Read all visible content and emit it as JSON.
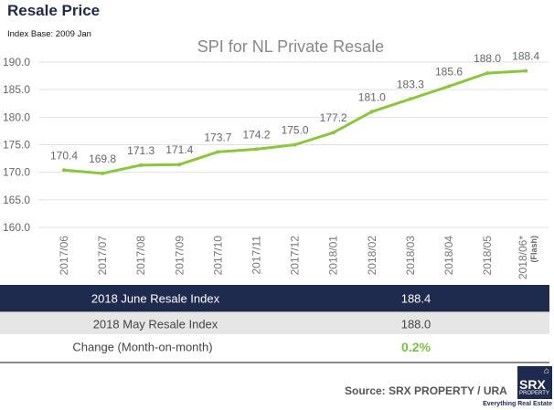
{
  "header": {
    "title": "Resale Price",
    "subtitle": "Index Base: 2009 Jan"
  },
  "chart_data": {
    "type": "line",
    "title": "SPI for NL Private Resale",
    "categories": [
      "2017/06",
      "2017/07",
      "2017/08",
      "2017/09",
      "2017/10",
      "2017/11",
      "2017/12",
      "2018/01",
      "2018/02",
      "2018/03",
      "2018/04",
      "2018/05",
      "2018/06*"
    ],
    "category_note": "(Flash)",
    "values": [
      170.4,
      169.8,
      171.3,
      171.4,
      173.7,
      174.2,
      175.0,
      177.2,
      181.0,
      183.3,
      185.6,
      188.0,
      188.4
    ],
    "data_labels": [
      "170.4",
      "169.8",
      "171.3",
      "171.4",
      "173.7",
      "174.2",
      "175.0",
      "177.2",
      "181.0",
      "183.3",
      "185.6",
      "188.0",
      "188.4"
    ],
    "ylim": [
      160,
      190
    ],
    "yticks": [
      "160.0",
      "165.0",
      "170.0",
      "175.0",
      "180.0",
      "185.0",
      "190.0"
    ],
    "grid": true,
    "line_color": "#8cc63f"
  },
  "table": {
    "rows": [
      {
        "label": "2018 June Resale Index",
        "value": "188.4"
      },
      {
        "label": "2018 May Resale Index",
        "value": "188.0"
      },
      {
        "label": "Change (Month-on-month)",
        "value": "0.2%"
      }
    ]
  },
  "footer": {
    "source": "Source:  SRX PROPERTY / URA",
    "logo": {
      "brand": "SRX",
      "sub": "PROPERTY",
      "tagline": "Everything Real Estate"
    }
  },
  "colors": {
    "navy": "#1f2a4f",
    "green": "#77c043"
  }
}
